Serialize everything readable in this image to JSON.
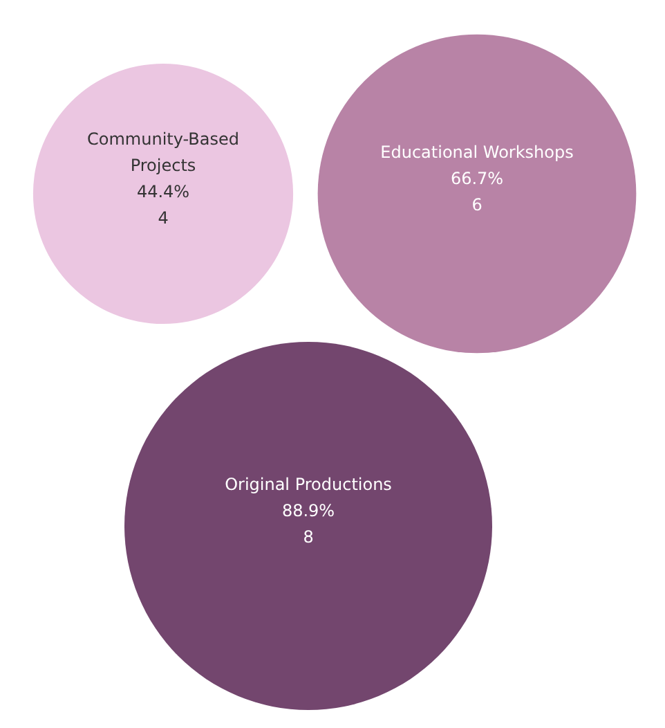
{
  "chart_data": {
    "type": "other",
    "categories": [
      "Community-Based Projects",
      "Educational Workshops",
      "Original Productions"
    ],
    "values": [
      4,
      6,
      8
    ],
    "colors": [
      "#ebc6e1",
      "#b883a6",
      "#73466e"
    ],
    "data_labels": true,
    "annotations": [
      "44.4%",
      "66.7%",
      "88.9%"
    ]
  }
}
